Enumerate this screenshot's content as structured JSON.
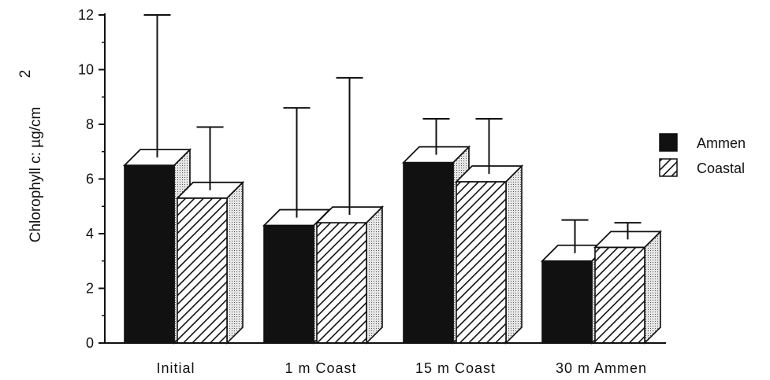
{
  "chart_data": {
    "type": "bar",
    "title": "",
    "xlabel": "",
    "ylabel": "Chlorophyll c:  µg/cm",
    "ylabel_superscript": "2",
    "ylim": [
      0,
      12
    ],
    "yticks": [
      "0",
      "2",
      "4",
      "6",
      "8",
      "10",
      "12"
    ],
    "categories": [
      "Initial",
      "1 m Coast",
      "15 m Coast",
      "30 m Ammen"
    ],
    "series": [
      {
        "name": "Ammen",
        "values": [
          6.5,
          4.3,
          6.6,
          3.0
        ],
        "error_upper": [
          12.0,
          8.6,
          8.2,
          4.5
        ],
        "color": "#111111",
        "pattern": "solid"
      },
      {
        "name": "Coastal",
        "values": [
          5.3,
          4.4,
          5.9,
          3.5
        ],
        "error_upper": [
          7.9,
          9.7,
          8.2,
          4.4
        ],
        "color": "#111111",
        "pattern": "diagonal-hatch"
      }
    ],
    "legend_position": "right",
    "style": "3d-bars",
    "grid": false
  }
}
